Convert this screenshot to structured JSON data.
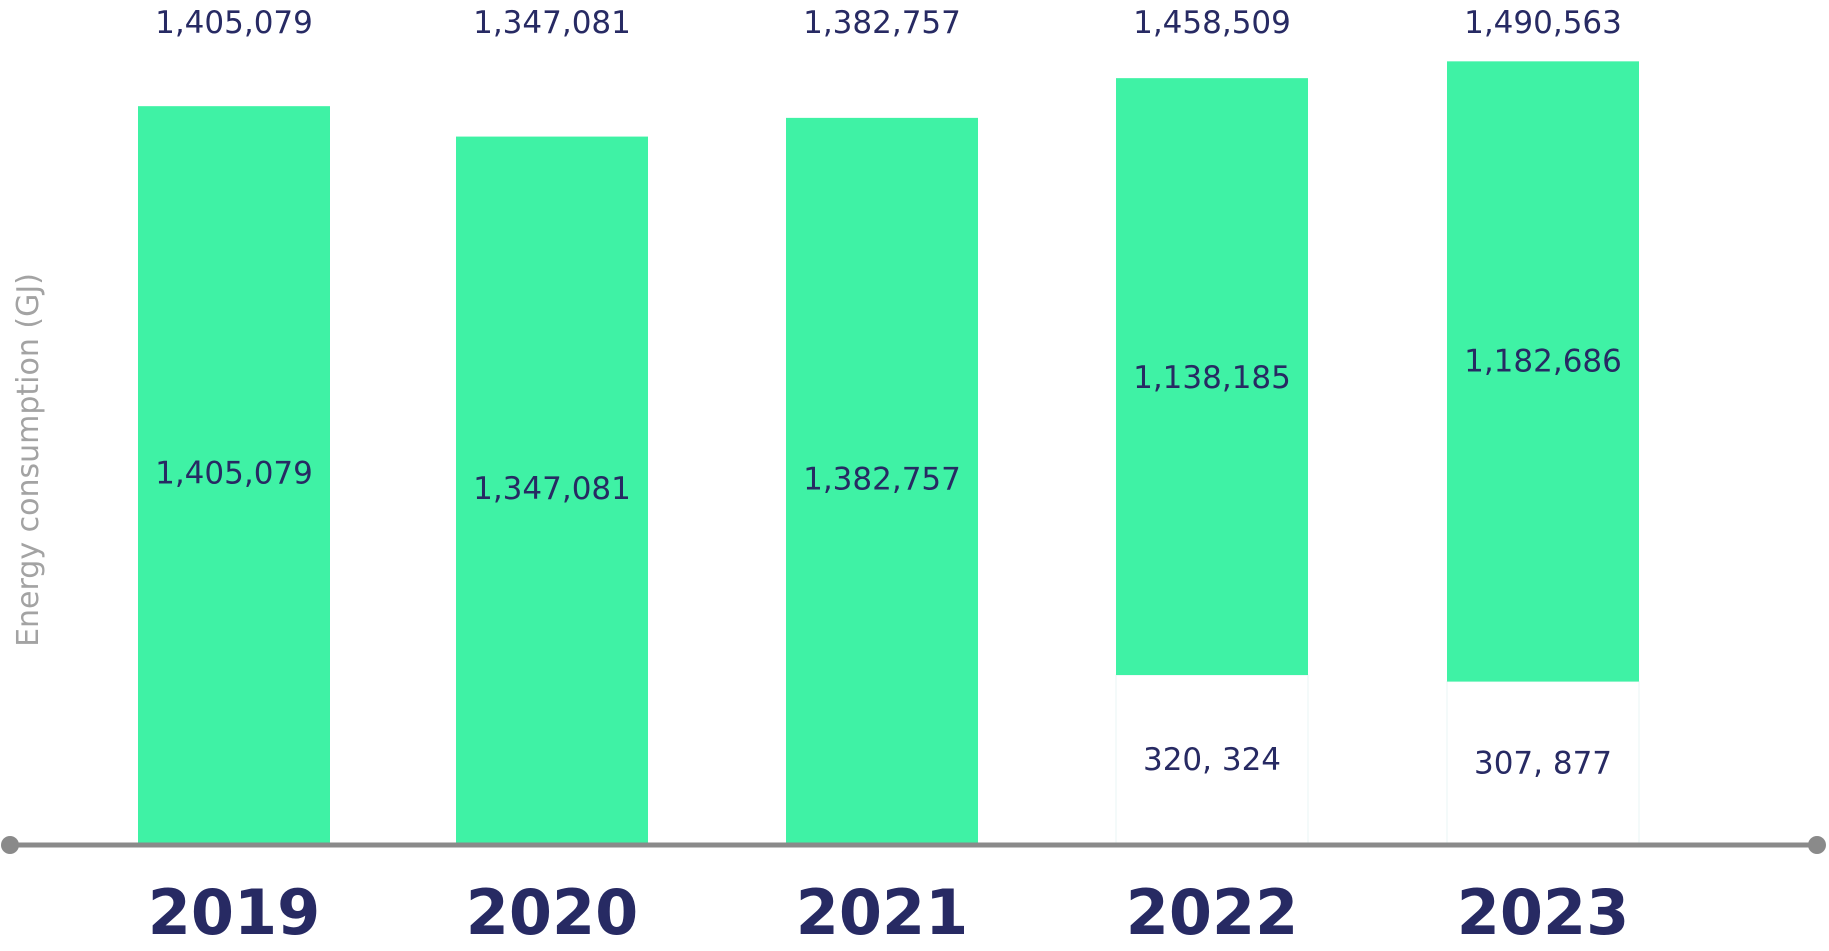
{
  "chart_data": {
    "type": "bar",
    "stacked": true,
    "title": "",
    "xlabel": "",
    "ylabel": "Energy consumption (GJ)",
    "categories": [
      "2019",
      "2020",
      "2021",
      "2022",
      "2023"
    ],
    "totals": [
      "1,405,079",
      "1,347,081",
      "1,382,757",
      "1,458,509",
      "1,490,563"
    ],
    "series": [
      {
        "name": "lower segment",
        "values": [
          0,
          0,
          0,
          320324,
          307877
        ],
        "labels": [
          "",
          "",
          "",
          "320, 324",
          "307, 877"
        ],
        "color": "#ffffff"
      },
      {
        "name": "upper segment",
        "values": [
          1405079,
          1347081,
          1382757,
          1138185,
          1182686
        ],
        "labels": [
          "1,405,079",
          "1,347,081",
          "1,382,757",
          "1,138,185",
          "1,182,686"
        ],
        "color": "#3ff2a5"
      }
    ],
    "ylim": [
      0,
      1516000
    ],
    "grid": false,
    "colors": {
      "bar": "#3ff2a5",
      "text": "#272a63",
      "axis": "#8a8a8a",
      "axis_title": "#a3a3a3",
      "segment_outline": "#e8f6f4"
    }
  }
}
